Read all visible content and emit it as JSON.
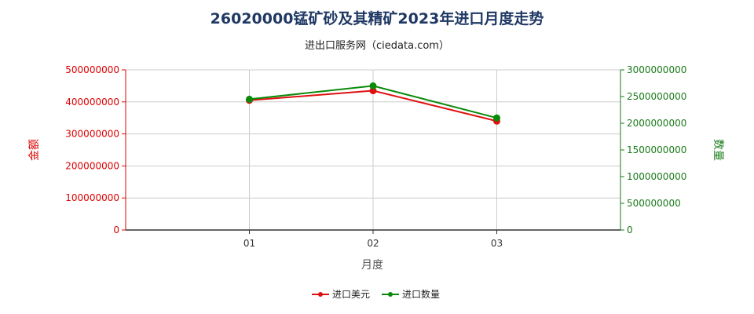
{
  "chart_data": {
    "type": "line",
    "title": "26020000锰矿砂及其精矿2023年进口月度走势",
    "subtitle": "进出口服务网（ciedata.com）",
    "categories": [
      "01",
      "02",
      "03"
    ],
    "xlabel": "月度",
    "ylabel_left": "金额",
    "ylabel_right": "数量",
    "ylim_left": [
      0,
      500000000
    ],
    "ylim_right": [
      0,
      3000000000
    ],
    "yticks_left": [
      "0",
      "100000000",
      "200000000",
      "300000000",
      "400000000",
      "500000000"
    ],
    "yticks_right": [
      "0",
      "500000000",
      "1000000000",
      "1500000000",
      "2000000000",
      "2500000000",
      "3000000000"
    ],
    "series": [
      {
        "name": "进口美元",
        "axis": "left",
        "color": "#e01010",
        "values": [
          405000000,
          435000000,
          340000000
        ]
      },
      {
        "name": "进口数量",
        "axis": "right",
        "color": "#0a8a0a",
        "values": [
          2450000000,
          2700000000,
          2100000000
        ]
      }
    ],
    "grid": true,
    "legend": "bottom-center"
  }
}
